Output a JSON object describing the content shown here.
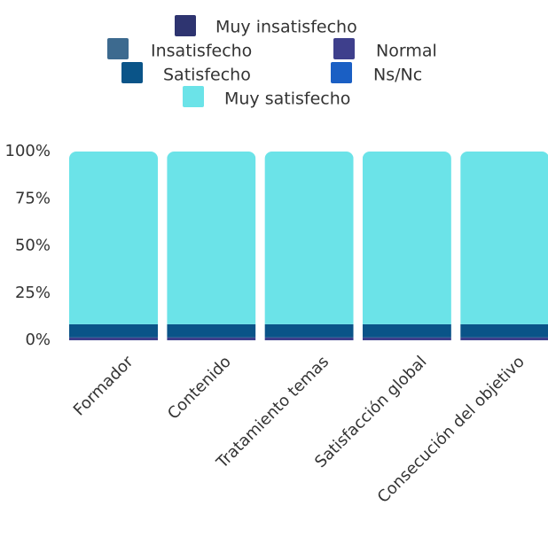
{
  "chart_data": {
    "type": "bar",
    "stacked": true,
    "categories": [
      "Formador",
      "Contenido",
      "Tratamiento temas",
      "Satisfacción global",
      "Consecución del objetivo"
    ],
    "series": [
      {
        "name": "Muy insatisfecho",
        "color": "#2e3470",
        "values": [
          0,
          0,
          0,
          0,
          0
        ]
      },
      {
        "name": "Insatisfecho",
        "color": "#3d6a8f",
        "values": [
          0,
          0,
          0,
          0,
          0
        ]
      },
      {
        "name": "Normal",
        "color": "#3e3f8c",
        "values": [
          1.5,
          1.5,
          1.5,
          1.5,
          1.5
        ]
      },
      {
        "name": "Satisfecho",
        "color": "#0a5488",
        "values": [
          7,
          7,
          7,
          7,
          7
        ]
      },
      {
        "name": "Ns/Nc",
        "color": "#1a5fc4",
        "values": [
          0,
          0,
          0,
          0,
          0
        ]
      },
      {
        "name": "Muy satisfecho",
        "color": "#6be3e8",
        "values": [
          91.5,
          91.5,
          91.5,
          91.5,
          91.5
        ]
      }
    ],
    "ylim": [
      0,
      100
    ],
    "yticks": [
      "0%",
      "25%",
      "50%",
      "75%",
      "100%"
    ],
    "ytick_values": [
      0,
      25,
      50,
      75,
      100
    ],
    "legend_position": "top",
    "grid": false
  }
}
